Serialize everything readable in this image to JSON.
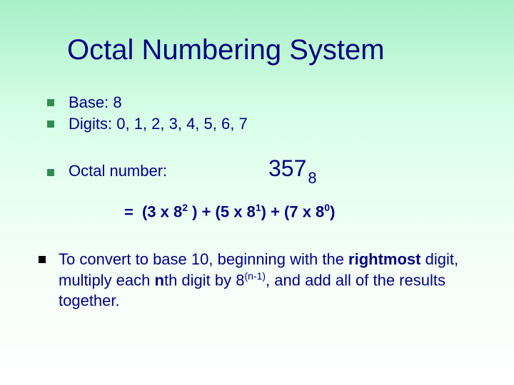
{
  "title": "Octal Numbering System",
  "bullet1": "Base: 8",
  "bullet2": "Digits: 0, 1, 2, 3, 4, 5, 6, 7",
  "bullet3_label": "Octal number:",
  "octal_value": "357",
  "octal_base": "8",
  "expansion_eq": "=",
  "exp_open1": "(3 x 8",
  "exp_p2": "2",
  "exp_mid1": " ) + (5 x 8",
  "exp_p1": "1",
  "exp_mid2": ") + (7 x 8",
  "exp_p0": "0",
  "exp_close": ")",
  "conv_a": "To convert to base 10, beginning with the ",
  "conv_b": "rightmost",
  "conv_c": " digit, multiply each ",
  "conv_d": "n",
  "conv_e": "th digit by 8",
  "conv_f": "(n-1)",
  "conv_g": ", and add all of the results together.",
  "colors": {
    "text": "#000080",
    "green_bullet": "#2e8b57",
    "black_bullet": "#000000",
    "bg_top": "#a8f0c8",
    "bg_bottom": "#ffffff"
  },
  "fontsizes": {
    "title": 40,
    "body": 22,
    "octal_number": 32,
    "superscript": 14
  }
}
